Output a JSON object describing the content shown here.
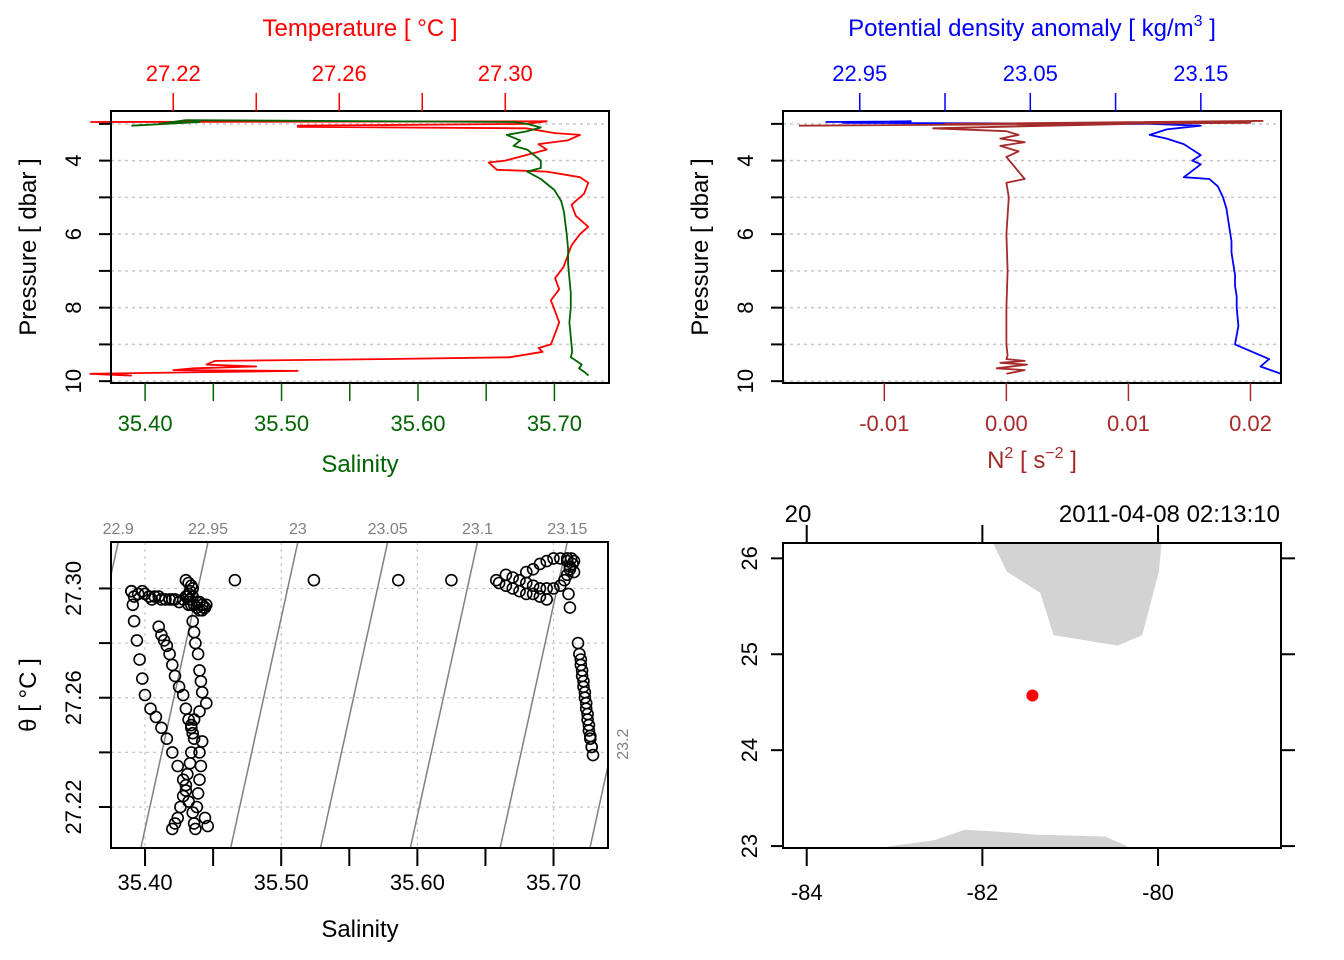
{
  "colors": {
    "temperature": "#ff0000",
    "salinity": "#006400",
    "density": "#0000ff",
    "n2": "#a52a2a",
    "isopycnal": "#808080",
    "land": "#d3d3d3",
    "station": "#ff0000",
    "grid": "#c8c8c8"
  },
  "chart_data": [
    {
      "id": "ts-profile",
      "type": "line",
      "title_top": "Temperature [ °C ]",
      "xlabel_bottom": "Salinity",
      "ylabel": "Pressure [ dbar ]",
      "top_axis": {
        "ticks": [
          27.22,
          27.24,
          27.26,
          27.28,
          27.3
        ],
        "labels": [
          "27.22",
          "",
          "27.26",
          "",
          "27.30"
        ],
        "range": [
          27.205,
          27.325
        ]
      },
      "bottom_axis": {
        "ticks": [
          35.4,
          35.45,
          35.5,
          35.55,
          35.6,
          35.65,
          35.7
        ],
        "labels": [
          "35.40",
          "",
          "35.50",
          "",
          "35.60",
          "",
          "35.70"
        ],
        "range": [
          35.375,
          35.74
        ]
      },
      "y_axis": {
        "ticks": [
          3,
          4,
          5,
          6,
          7,
          8,
          9,
          10
        ],
        "labels": [
          "",
          "4",
          "",
          "6",
          "",
          "8",
          "",
          "10"
        ],
        "range": [
          10.05,
          2.65
        ],
        "reversed": true
      },
      "grid": "horizontal-dotted",
      "series": [
        {
          "name": "Temperature",
          "axis": "top",
          "x": [
            27.2,
            27.31,
            27.305,
            27.25,
            27.25,
            27.305,
            27.312,
            27.318,
            27.315,
            27.308,
            27.31,
            27.305,
            27.3,
            27.296,
            27.298,
            27.31,
            27.318,
            27.32,
            27.319,
            27.316,
            27.317,
            27.32,
            27.318,
            27.316,
            27.315,
            27.314,
            27.312,
            27.313,
            27.311,
            27.312,
            27.313,
            27.312,
            27.311,
            27.308,
            27.309,
            27.301,
            27.27,
            27.23,
            27.228,
            27.24,
            27.225,
            27.22,
            27.25,
            27.23,
            27.2,
            27.21
          ],
          "p": [
            2.95,
            2.93,
            3.0,
            3.05,
            3.08,
            3.12,
            3.25,
            3.3,
            3.45,
            3.55,
            3.7,
            3.85,
            4.0,
            4.05,
            4.25,
            4.3,
            4.45,
            4.6,
            4.9,
            5.2,
            5.5,
            5.8,
            6.0,
            6.3,
            6.6,
            6.9,
            7.2,
            7.5,
            7.8,
            8.1,
            8.4,
            8.7,
            9.0,
            9.1,
            9.2,
            9.35,
            9.4,
            9.45,
            9.55,
            9.6,
            9.65,
            9.7,
            9.72,
            9.75,
            9.8,
            9.85
          ]
        },
        {
          "name": "Salinity",
          "axis": "bottom",
          "x": [
            35.39,
            35.44,
            35.41,
            35.43,
            35.67,
            35.68,
            35.69,
            35.68,
            35.665,
            35.675,
            35.67,
            35.68,
            35.685,
            35.69,
            35.69,
            35.68,
            35.69,
            35.7,
            35.705,
            35.707,
            35.708,
            35.709,
            35.71,
            35.71,
            35.711,
            35.712,
            35.712,
            35.711,
            35.712,
            35.713,
            35.712,
            35.716,
            35.72,
            35.718,
            35.722,
            35.725
          ],
          "p": [
            3.05,
            2.95,
            3.0,
            2.9,
            2.95,
            3.0,
            3.1,
            3.2,
            3.3,
            3.45,
            3.6,
            3.7,
            3.85,
            4.0,
            4.2,
            4.3,
            4.5,
            4.8,
            5.1,
            5.4,
            5.7,
            6.0,
            6.4,
            6.8,
            7.2,
            7.6,
            8.0,
            8.4,
            8.8,
            9.2,
            9.35,
            9.45,
            9.55,
            9.65,
            9.75,
            9.85
          ]
        }
      ]
    },
    {
      "id": "density-n2-profile",
      "type": "line",
      "title_top": "Potential density anomaly [ kg/m",
      "title_top_sup": "3",
      "title_top_end": " ]",
      "xlabel_bottom": "N",
      "xlabel_bottom_sup": "2",
      "xlabel_bottom_unit": " [ s",
      "xlabel_bottom_unit_sup": "−2",
      "xlabel_bottom_end": " ]",
      "ylabel": "Pressure [ dbar ]",
      "top_axis": {
        "ticks": [
          22.95,
          23.0,
          23.05,
          23.1,
          23.15
        ],
        "labels": [
          "22.95",
          "",
          "23.05",
          "",
          "23.15"
        ],
        "range": [
          22.905,
          23.197
        ]
      },
      "bottom_axis": {
        "ticks": [
          -0.01,
          0.0,
          0.01,
          0.02
        ],
        "labels": [
          "-0.01",
          "0.00",
          "0.01",
          "0.02"
        ],
        "range": [
          -0.0183,
          0.0225
        ]
      },
      "y_axis": {
        "ticks": [
          3,
          4,
          5,
          6,
          7,
          8,
          9,
          10
        ],
        "labels": [
          "",
          "4",
          "",
          "6",
          "",
          "8",
          "",
          "10"
        ],
        "range": [
          10.05,
          2.65
        ],
        "reversed": true
      },
      "grid": "horizontal-dotted",
      "series": [
        {
          "name": "Potential density anomaly",
          "axis": "top",
          "x": [
            22.93,
            22.98,
            22.94,
            23.12,
            23.15,
            23.13,
            23.12,
            23.13,
            23.14,
            23.145,
            23.15,
            23.145,
            23.15,
            23.14,
            23.155,
            23.16,
            23.163,
            23.165,
            23.166,
            23.167,
            23.168,
            23.168,
            23.169,
            23.17,
            23.17,
            23.171,
            23.171,
            23.172,
            23.17,
            23.19,
            23.185,
            23.197
          ],
          "p": [
            2.95,
            2.93,
            2.97,
            3.0,
            3.05,
            3.15,
            3.3,
            3.4,
            3.55,
            3.7,
            3.85,
            4.0,
            4.1,
            4.45,
            4.5,
            4.7,
            5.0,
            5.3,
            5.6,
            5.9,
            6.2,
            6.5,
            6.8,
            7.1,
            7.4,
            7.7,
            8.0,
            8.5,
            9.0,
            9.4,
            9.6,
            9.8
          ]
        },
        {
          "name": "N2",
          "axis": "bottom",
          "x": [
            -0.017,
            0.02,
            -0.005,
            0.021,
            -0.006,
            0.0,
            0.001,
            -0.0005,
            0.0015,
            -0.0005,
            0.001,
            0.0,
            0.0015,
            0.0,
            0.0002,
            0.0,
            0.0001,
            0.0,
            0.0,
            0.0001,
            0.0,
            0.0015,
            -0.0005,
            0.0017,
            -0.0008,
            0.0015,
            0.0
          ],
          "p": [
            3.05,
            2.97,
            3.0,
            2.92,
            3.12,
            3.2,
            3.3,
            3.4,
            3.5,
            3.6,
            3.75,
            3.9,
            4.5,
            4.6,
            5.0,
            6.0,
            7.0,
            8.0,
            9.0,
            9.3,
            9.4,
            9.45,
            9.5,
            9.55,
            9.65,
            9.7,
            9.8
          ]
        }
      ]
    },
    {
      "id": "ts-diagram",
      "type": "scatter",
      "xlabel": "Salinity",
      "ylabel": "θ [ °C ]",
      "x_axis": {
        "ticks": [
          35.4,
          35.45,
          35.5,
          35.55,
          35.6,
          35.65,
          35.7
        ],
        "labels": [
          "35.40",
          "",
          "35.50",
          "",
          "35.60",
          "",
          "35.70"
        ],
        "range": [
          35.375,
          35.74
        ]
      },
      "y_axis": {
        "ticks": [
          27.22,
          27.24,
          27.26,
          27.28,
          27.3
        ],
        "labels": [
          "27.22",
          "",
          "27.26",
          "",
          "27.30"
        ],
        "range": [
          27.205,
          27.317
        ]
      },
      "grid": "dotted",
      "isopycnals": {
        "labels": [
          "22.9",
          "22.95",
          "23",
          "23.05",
          "23.1",
          "23.15",
          "23.2"
        ],
        "values": [
          22.9,
          22.95,
          23.0,
          23.05,
          23.1,
          23.15,
          23.2
        ]
      },
      "points": {
        "S": [
          35.39,
          35.392,
          35.395,
          35.398,
          35.4,
          35.403,
          35.405,
          35.407,
          35.41,
          35.412,
          35.415,
          35.418,
          35.42,
          35.422,
          35.425,
          35.428,
          35.43,
          35.435,
          35.438,
          35.44,
          35.442,
          35.445,
          35.39,
          35.391,
          35.392,
          35.394,
          35.396,
          35.398,
          35.4,
          35.404,
          35.408,
          35.412,
          35.416,
          35.42,
          35.424,
          35.428,
          35.43,
          35.432,
          35.435,
          35.436,
          35.437,
          35.438,
          35.439,
          35.44,
          35.441,
          35.44,
          35.442,
          35.444,
          35.446,
          35.41,
          35.412,
          35.414,
          35.416,
          35.418,
          35.42,
          35.422,
          35.425,
          35.428,
          35.43,
          35.432,
          35.434,
          35.435,
          35.436,
          35.434,
          35.433,
          35.431,
          35.43,
          35.428,
          35.426,
          35.424,
          35.422,
          35.42,
          35.432,
          35.434,
          35.436,
          35.438,
          35.44,
          35.442,
          35.443,
          35.444,
          35.43,
          35.432,
          35.434,
          35.435,
          35.433,
          35.432,
          35.431,
          35.433,
          35.435,
          35.436,
          35.437,
          35.439,
          35.44,
          35.441,
          35.442,
          35.445,
          35.44,
          35.436,
          35.434,
          35.466,
          35.524,
          35.586,
          35.625,
          35.658,
          35.665,
          35.67,
          35.675,
          35.68,
          35.685,
          35.69,
          35.695,
          35.7,
          35.705,
          35.708,
          35.71,
          35.712,
          35.714,
          35.715,
          35.71,
          35.712,
          35.715,
          35.66,
          35.665,
          35.67,
          35.675,
          35.68,
          35.685,
          35.69,
          35.695,
          35.68,
          35.685,
          35.69,
          35.695,
          35.7,
          35.705,
          35.71,
          35.713,
          35.711,
          35.712,
          35.718,
          35.719,
          35.72,
          35.721,
          35.722,
          35.723,
          35.724,
          35.725,
          35.726,
          35.727,
          35.728,
          35.729,
          35.72,
          35.721,
          35.722,
          35.723,
          35.724,
          35.725,
          35.726,
          35.727,
          35.728
        ],
        "T": [
          27.299,
          27.297,
          27.298,
          27.299,
          27.298,
          27.297,
          27.296,
          27.297,
          27.297,
          27.296,
          27.296,
          27.296,
          27.296,
          27.296,
          27.295,
          27.296,
          27.297,
          27.297,
          27.295,
          27.295,
          27.294,
          27.294,
          27.299,
          27.294,
          27.288,
          27.281,
          27.274,
          27.267,
          27.261,
          27.256,
          27.253,
          27.249,
          27.245,
          27.24,
          27.235,
          27.23,
          27.226,
          27.222,
          27.218,
          27.214,
          27.212,
          27.22,
          27.225,
          27.23,
          27.235,
          27.24,
          27.244,
          27.216,
          27.213,
          27.286,
          27.283,
          27.281,
          27.279,
          27.276,
          27.272,
          27.268,
          27.264,
          27.261,
          27.256,
          27.252,
          27.249,
          27.247,
          27.245,
          27.24,
          27.236,
          27.232,
          27.228,
          27.224,
          27.22,
          27.216,
          27.214,
          27.212,
          27.294,
          27.294,
          27.294,
          27.293,
          27.292,
          27.292,
          27.293,
          27.293,
          27.303,
          27.302,
          27.301,
          27.3,
          27.299,
          27.298,
          27.297,
          27.296,
          27.288,
          27.284,
          27.28,
          27.276,
          27.27,
          27.266,
          27.262,
          27.258,
          27.255,
          27.252,
          27.25,
          27.303,
          27.303,
          27.303,
          27.303,
          27.303,
          27.305,
          27.304,
          27.303,
          27.302,
          27.301,
          27.3,
          27.3,
          27.3,
          27.301,
          27.303,
          27.305,
          27.307,
          27.309,
          27.31,
          27.31,
          27.308,
          27.306,
          27.302,
          27.301,
          27.3,
          27.299,
          27.298,
          27.298,
          27.297,
          27.296,
          27.306,
          27.307,
          27.309,
          27.31,
          27.311,
          27.311,
          27.311,
          27.311,
          27.298,
          27.293,
          27.28,
          27.276,
          27.272,
          27.268,
          27.264,
          27.26,
          27.256,
          27.252,
          27.248,
          27.245,
          27.242,
          27.239,
          27.274,
          27.27,
          27.266,
          27.262,
          27.258,
          27.254,
          27.25,
          27.246,
          27.242
        ]
      }
    },
    {
      "id": "station-map",
      "type": "map",
      "top_labels": {
        "left": "20",
        "right": "2011-04-08 02:13:10"
      },
      "x_axis": {
        "ticks": [
          -84,
          -82,
          -80
        ],
        "labels": [
          "-84",
          "-82",
          "-80"
        ],
        "range": [
          -84.27,
          -78.6
        ]
      },
      "y_axis": {
        "ticks": [
          23,
          24,
          25,
          26
        ],
        "labels": [
          "23",
          "24",
          "25",
          "26"
        ],
        "range": [
          22.98,
          26.16
        ]
      },
      "station": {
        "lon": -81.43,
        "lat": 24.57
      },
      "land": [
        {
          "name": "Florida",
          "lon": [
            -81.88,
            -81.72,
            -81.34,
            -81.19,
            -80.46,
            -80.18,
            -80.05,
            -79.99,
            -79.96,
            -79.96
          ],
          "lat": [
            26.16,
            25.86,
            25.64,
            25.2,
            25.09,
            25.2,
            25.65,
            25.86,
            26.16,
            26.16
          ]
        },
        {
          "name": "Cuba",
          "lon": [
            -83.2,
            -82.55,
            -82.2,
            -81.8,
            -81.4,
            -81.0,
            -80.6,
            -80.35,
            -80.35,
            -83.2
          ],
          "lat": [
            22.98,
            23.06,
            23.17,
            23.15,
            23.12,
            23.11,
            23.1,
            23.0,
            22.98,
            22.98
          ]
        }
      ]
    }
  ]
}
